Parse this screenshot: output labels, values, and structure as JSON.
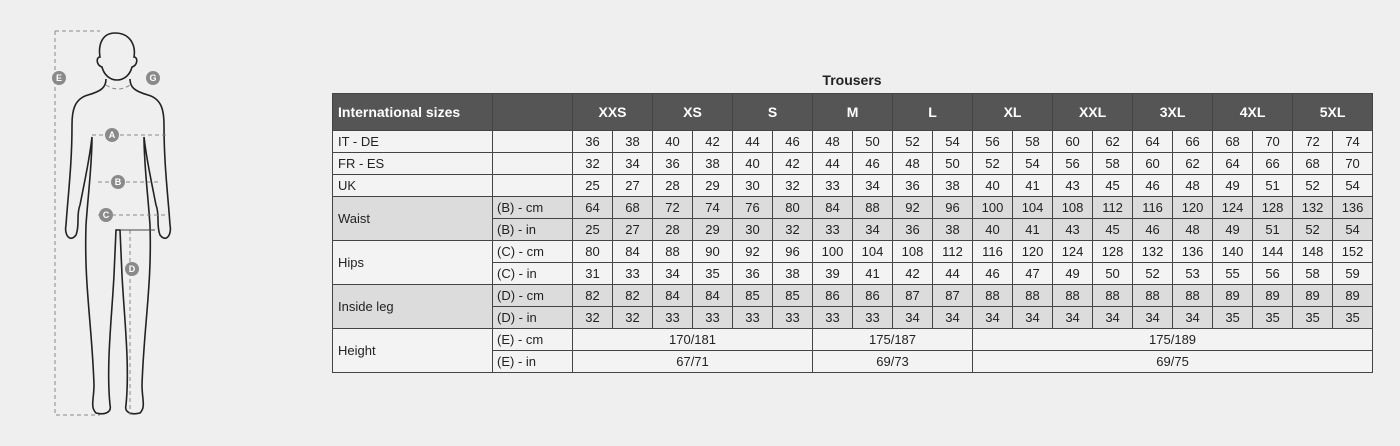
{
  "title": "Trousers",
  "figure_labels": [
    "A",
    "B",
    "C",
    "D",
    "E",
    "G"
  ],
  "colors": {
    "header_bg": "#555555",
    "shaded_row": "#dcdcdc",
    "light_row": "#f3f3f3"
  },
  "header": {
    "label": "International sizes",
    "sizes": [
      "XXS",
      "XS",
      "S",
      "M",
      "L",
      "XL",
      "XXL",
      "3XL",
      "4XL",
      "5XL"
    ]
  },
  "rows": [
    {
      "label": "IT - DE",
      "sub": "",
      "shade": false,
      "values": [
        "36",
        "38",
        "40",
        "42",
        "44",
        "46",
        "48",
        "50",
        "52",
        "54",
        "56",
        "58",
        "60",
        "62",
        "64",
        "66",
        "68",
        "70",
        "72",
        "74"
      ]
    },
    {
      "label": "FR - ES",
      "sub": "",
      "shade": false,
      "values": [
        "32",
        "34",
        "36",
        "38",
        "40",
        "42",
        "44",
        "46",
        "48",
        "50",
        "52",
        "54",
        "56",
        "58",
        "60",
        "62",
        "64",
        "66",
        "68",
        "70"
      ]
    },
    {
      "label": "UK",
      "sub": "",
      "shade": false,
      "values": [
        "25",
        "27",
        "28",
        "29",
        "30",
        "32",
        "33",
        "34",
        "36",
        "38",
        "40",
        "41",
        "43",
        "45",
        "46",
        "48",
        "49",
        "51",
        "52",
        "54"
      ]
    }
  ],
  "groups": [
    {
      "label": "Waist",
      "shade": true,
      "rows": [
        {
          "sub": "(B) - cm",
          "values": [
            "64",
            "68",
            "72",
            "74",
            "76",
            "80",
            "84",
            "88",
            "92",
            "96",
            "100",
            "104",
            "108",
            "112",
            "116",
            "120",
            "124",
            "128",
            "132",
            "136"
          ]
        },
        {
          "sub": "(B) - in",
          "values": [
            "25",
            "27",
            "28",
            "29",
            "30",
            "32",
            "33",
            "34",
            "36",
            "38",
            "40",
            "41",
            "43",
            "45",
            "46",
            "48",
            "49",
            "51",
            "52",
            "54"
          ]
        }
      ]
    },
    {
      "label": "Hips",
      "shade": false,
      "rows": [
        {
          "sub": "(C) - cm",
          "values": [
            "80",
            "84",
            "88",
            "90",
            "92",
            "96",
            "100",
            "104",
            "108",
            "112",
            "116",
            "120",
            "124",
            "128",
            "132",
            "136",
            "140",
            "144",
            "148",
            "152"
          ]
        },
        {
          "sub": "(C) - in",
          "values": [
            "31",
            "33",
            "34",
            "35",
            "36",
            "38",
            "39",
            "41",
            "42",
            "44",
            "46",
            "47",
            "49",
            "50",
            "52",
            "53",
            "55",
            "56",
            "58",
            "59"
          ]
        }
      ]
    },
    {
      "label": "Inside leg",
      "shade": true,
      "rows": [
        {
          "sub": "(D) - cm",
          "values": [
            "82",
            "82",
            "84",
            "84",
            "85",
            "85",
            "86",
            "86",
            "87",
            "87",
            "88",
            "88",
            "88",
            "88",
            "88",
            "88",
            "89",
            "89",
            "89",
            "89"
          ]
        },
        {
          "sub": "(D) - in",
          "values": [
            "32",
            "32",
            "33",
            "33",
            "33",
            "33",
            "33",
            "33",
            "34",
            "34",
            "34",
            "34",
            "34",
            "34",
            "34",
            "34",
            "35",
            "35",
            "35",
            "35"
          ]
        }
      ]
    }
  ],
  "height": {
    "label": "Height",
    "rows": [
      {
        "sub": "(E) - cm",
        "spans": [
          {
            "cols": 6,
            "value": "170/181"
          },
          {
            "cols": 4,
            "value": "175/187"
          },
          {
            "cols": 10,
            "value": "175/189"
          }
        ]
      },
      {
        "sub": "(E) - in",
        "spans": [
          {
            "cols": 6,
            "value": "67/71"
          },
          {
            "cols": 4,
            "value": "69/73"
          },
          {
            "cols": 10,
            "value": "69/75"
          }
        ]
      }
    ]
  }
}
